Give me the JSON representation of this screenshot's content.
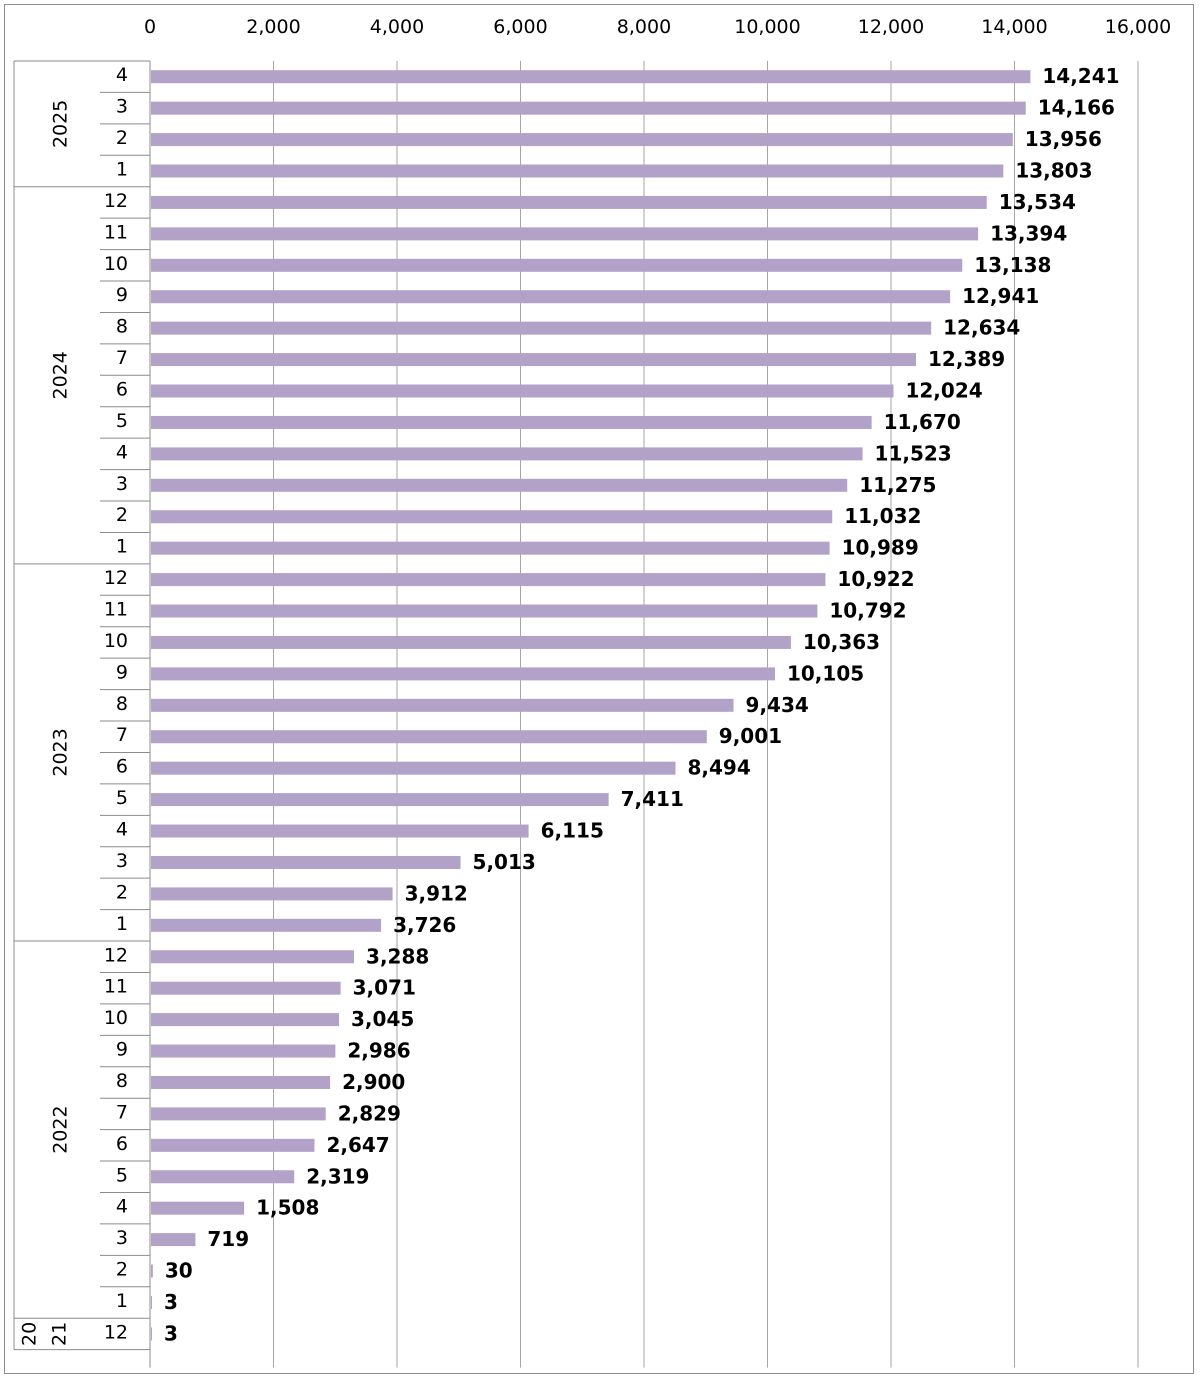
{
  "chart_data": {
    "type": "bar",
    "orientation": "horizontal",
    "bar_color": "#b3a2c7",
    "xlim": [
      0,
      16000
    ],
    "xticks": [
      "0",
      "2,000",
      "4,000",
      "6,000",
      "8,000",
      "10,000",
      "12,000",
      "14,000",
      "16,000"
    ],
    "xtick_values": [
      0,
      2000,
      4000,
      6000,
      8000,
      10000,
      12000,
      14000,
      16000
    ],
    "grid": true,
    "groups": [
      {
        "year": "2025",
        "months": [
          "4",
          "3",
          "2",
          "1"
        ],
        "values": [
          14241,
          14166,
          13956,
          13803
        ],
        "labels": [
          "14,241",
          "14,166",
          "13,956",
          "13,803"
        ]
      },
      {
        "year": "2024",
        "months": [
          "12",
          "11",
          "10",
          "9",
          "8",
          "7",
          "6",
          "5",
          "4",
          "3",
          "2",
          "1"
        ],
        "values": [
          13534,
          13394,
          13138,
          12941,
          12634,
          12389,
          12024,
          11670,
          11523,
          11275,
          11032,
          10989
        ],
        "labels": [
          "13,534",
          "13,394",
          "13,138",
          "12,941",
          "12,634",
          "12,389",
          "12,024",
          "11,670",
          "11,523",
          "11,275",
          "11,032",
          "10,989"
        ]
      },
      {
        "year": "2023",
        "months": [
          "12",
          "11",
          "10",
          "9",
          "8",
          "7",
          "6",
          "5",
          "4",
          "3",
          "2",
          "1"
        ],
        "values": [
          10922,
          10792,
          10363,
          10105,
          9434,
          9001,
          8494,
          7411,
          6115,
          5013,
          3912,
          3726
        ],
        "labels": [
          "10,922",
          "10,792",
          "10,363",
          "10,105",
          "9,434",
          "9,001",
          "8,494",
          "7,411",
          "6,115",
          "5,013",
          "3,912",
          "3,726"
        ]
      },
      {
        "year": "2022",
        "months": [
          "12",
          "11",
          "10",
          "9",
          "8",
          "7",
          "6",
          "5",
          "4",
          "3",
          "2",
          "1"
        ],
        "values": [
          3288,
          3071,
          3045,
          2986,
          2900,
          2829,
          2647,
          2319,
          1508,
          719,
          30,
          3
        ],
        "labels": [
          "3,288",
          "3,071",
          "3,045",
          "2,986",
          "2,900",
          "2,829",
          "2,647",
          "2,319",
          "1,508",
          "719",
          "30",
          "3"
        ]
      },
      {
        "year_lines": [
          "20",
          "21"
        ],
        "months": [
          "12"
        ],
        "values": [
          3
        ],
        "labels": [
          "3"
        ]
      }
    ]
  }
}
